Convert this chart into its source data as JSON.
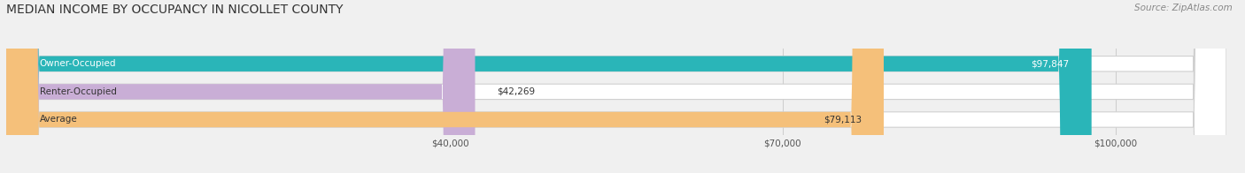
{
  "title": "MEDIAN INCOME BY OCCUPANCY IN NICOLLET COUNTY",
  "source": "Source: ZipAtlas.com",
  "categories": [
    "Owner-Occupied",
    "Renter-Occupied",
    "Average"
  ],
  "values": [
    97847,
    42269,
    79113
  ],
  "labels": [
    "$97,847",
    "$42,269",
    "$79,113"
  ],
  "bar_colors": [
    "#2ab5b8",
    "#c9aed6",
    "#f5c07a"
  ],
  "background_color": "#f0f0f0",
  "xlim": [
    0,
    110000
  ],
  "xticks": [
    40000,
    70000,
    100000
  ],
  "xticklabels": [
    "$40,000",
    "$70,000",
    "$100,000"
  ],
  "title_fontsize": 10,
  "source_fontsize": 7.5,
  "bar_label_fontsize": 7.5,
  "category_fontsize": 7.5,
  "tick_fontsize": 7.5,
  "bar_height": 0.55,
  "label_threshold": 60000
}
